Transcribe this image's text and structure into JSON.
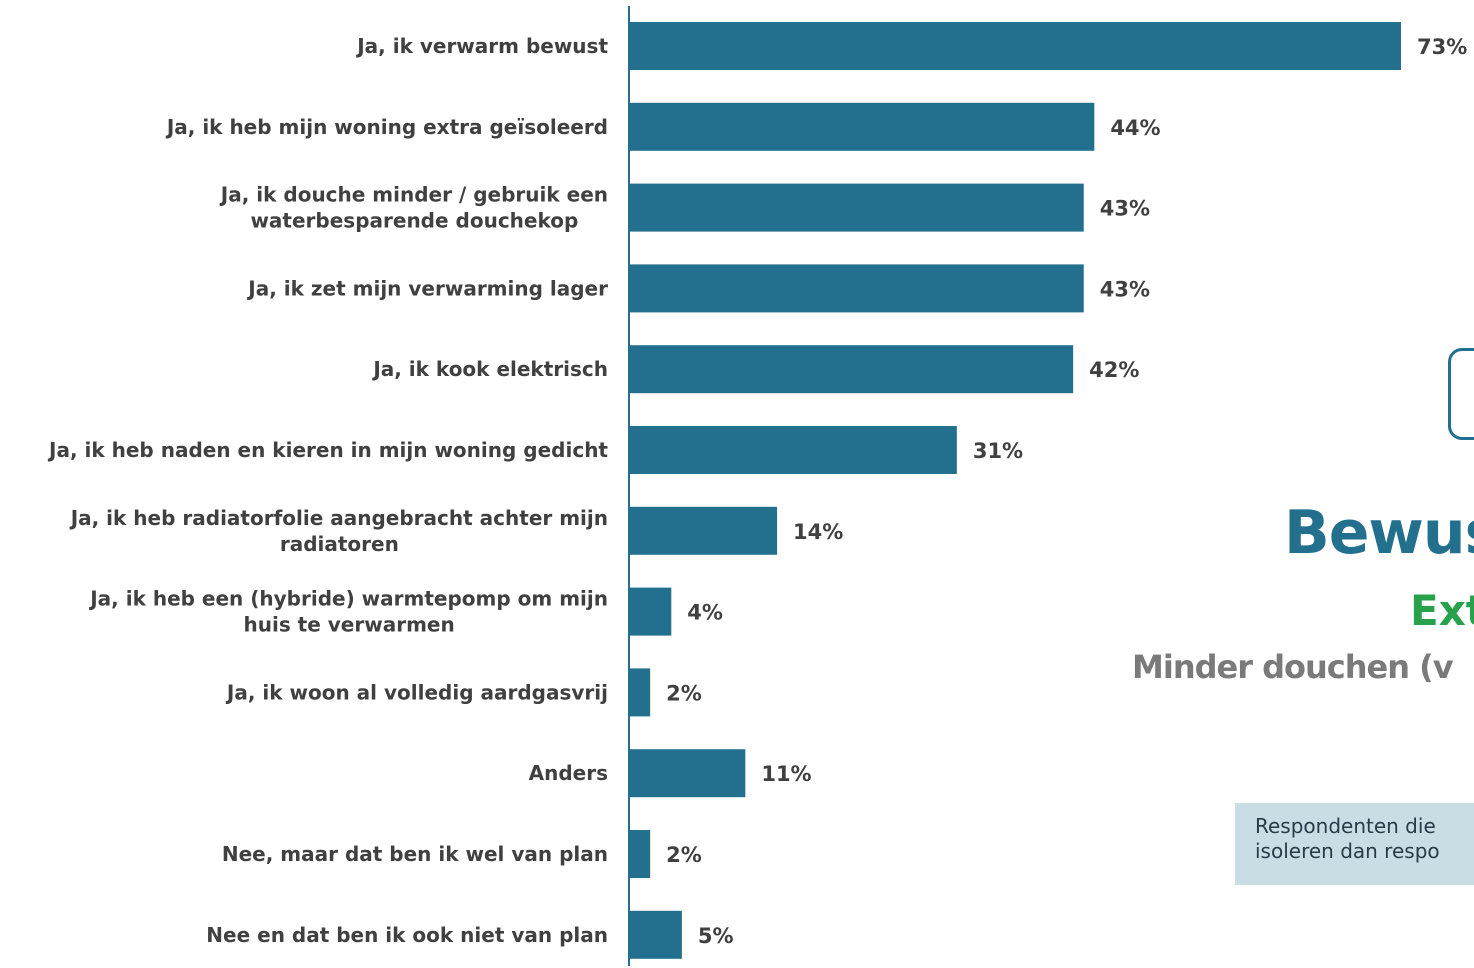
{
  "chart_data": {
    "type": "bar",
    "orientation": "horizontal",
    "categories": [
      [
        "Ja, ik verwarm bewust"
      ],
      [
        "Ja, ik heb mijn woning extra geïsoleerd"
      ],
      [
        "Ja, ik douche minder / gebruik een",
        "waterbesparende douchekop"
      ],
      [
        "Ja, ik zet mijn verwarming lager"
      ],
      [
        "Ja, ik kook elektrisch"
      ],
      [
        "Ja, ik heb naden en kieren in mijn woning gedicht"
      ],
      [
        "Ja, ik heb radiatorfolie aangebracht achter mijn",
        "radiatoren"
      ],
      [
        "Ja, ik heb een (hybride) warmtepomp om mijn",
        "huis te verwarmen"
      ],
      [
        "Ja, ik woon al volledig aardgasvrij"
      ],
      [
        "Anders"
      ],
      [
        "Nee, maar dat ben ik wel van plan"
      ],
      [
        "Nee en dat ben ik ook niet van plan"
      ]
    ],
    "values": [
      73,
      44,
      43,
      43,
      42,
      31,
      14,
      4,
      2,
      11,
      2,
      5
    ],
    "value_labels": [
      "73%",
      "44%",
      "43%",
      "43%",
      "42%",
      "31%",
      "14%",
      "4%",
      "2%",
      "11%",
      "2%",
      "5%"
    ],
    "title": "",
    "xlabel": "",
    "ylabel": "",
    "xlim": [
      0,
      73
    ],
    "grid": false,
    "legend": "none",
    "bar_color": "#236f8e"
  },
  "side_panel": {
    "headline": "Bewus",
    "subline_green": "Ext",
    "subline_grey": "Minder douchen (v",
    "note_lines": [
      "Respondenten die",
      "isoleren dan respo"
    ],
    "colors": {
      "headline": "#236f8e",
      "subline_green": "#27a24b",
      "subline_grey": "#7a7a7a",
      "note_background": "#c8dde4"
    }
  }
}
